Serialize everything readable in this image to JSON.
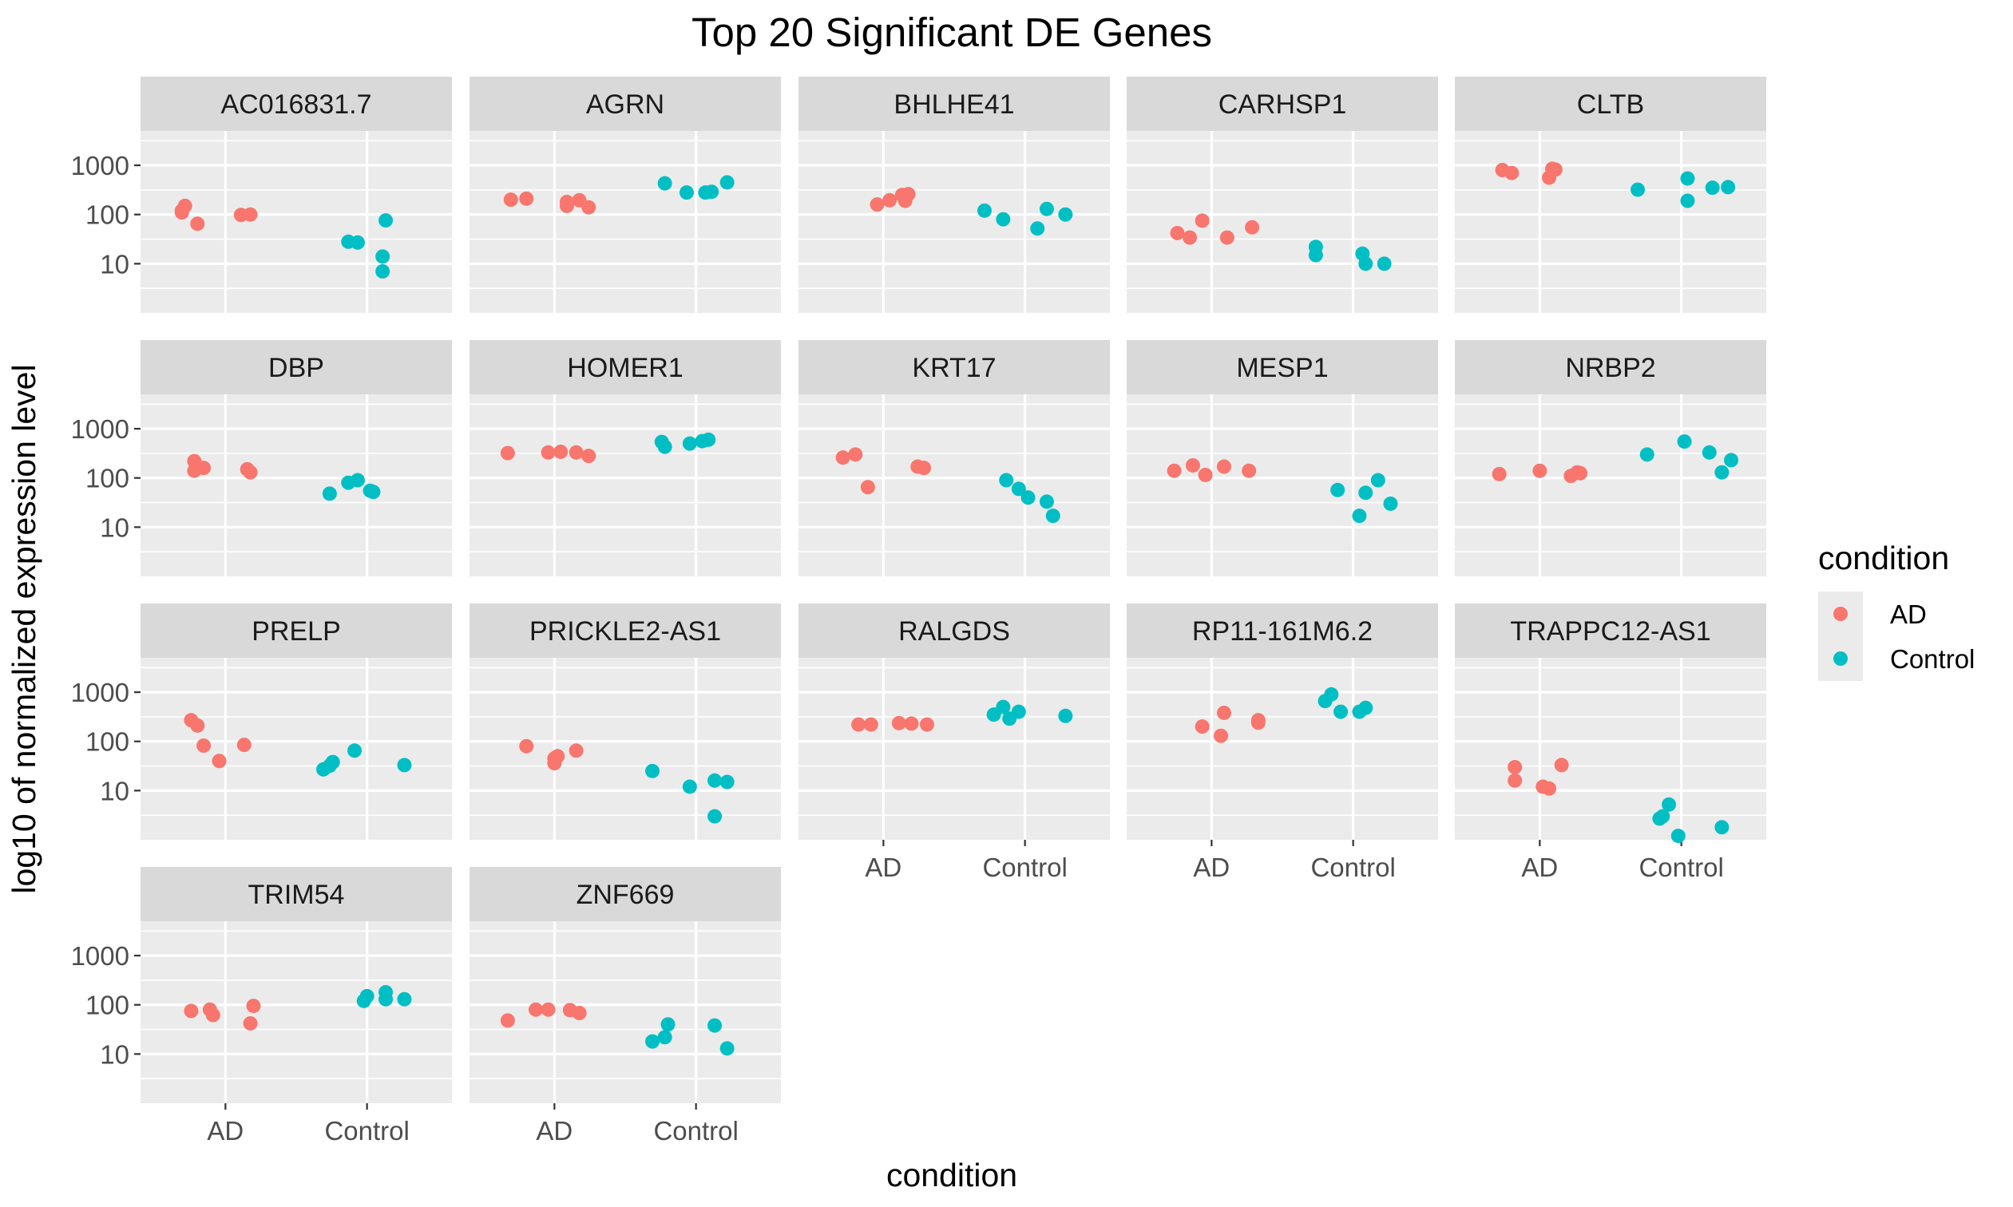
{
  "chart_data": {
    "type": "scatter",
    "title": "Top 20 Significant DE Genes",
    "xlabel": "condition",
    "ylabel": "log10 of normalized expression level",
    "categories": [
      "AD",
      "Control"
    ],
    "y_scale": "log10",
    "ylim": [
      1,
      5000
    ],
    "y_ticks": [
      10,
      100,
      1000
    ],
    "y_tick_labels": [
      "10",
      "100",
      "1000"
    ],
    "grid": true,
    "legend": {
      "title": "condition",
      "position": "right",
      "entries": [
        {
          "name": "AD",
          "color": "#F8766D"
        },
        {
          "name": "Control",
          "color": "#00BFC4"
        }
      ]
    },
    "panels": [
      {
        "gene": "AC016831.7",
        "AD": [
          [
            -0.14,
            120
          ],
          [
            -0.13,
            150
          ],
          [
            -0.09,
            65
          ],
          [
            -0.14,
            110
          ],
          [
            0.05,
            98
          ],
          [
            0.08,
            100
          ]
        ],
        "Control": [
          [
            -0.06,
            28
          ],
          [
            -0.03,
            27
          ],
          [
            0.05,
            14
          ],
          [
            0.06,
            76
          ],
          [
            0.05,
            7
          ]
        ]
      },
      {
        "gene": "AGRN",
        "AD": [
          [
            -0.14,
            200
          ],
          [
            -0.09,
            210
          ],
          [
            0.04,
            180
          ],
          [
            0.08,
            195
          ],
          [
            0.11,
            140
          ],
          [
            0.04,
            150
          ]
        ],
        "Control": [
          [
            -0.1,
            430
          ],
          [
            -0.03,
            280
          ],
          [
            0.05,
            290
          ],
          [
            0.1,
            450
          ],
          [
            0.03,
            280
          ]
        ]
      },
      {
        "gene": "BHLHE41",
        "AD": [
          [
            -0.02,
            160
          ],
          [
            0.02,
            195
          ],
          [
            0.06,
            250
          ],
          [
            0.08,
            260
          ],
          [
            0.07,
            190
          ]
        ],
        "Control": [
          [
            -0.13,
            120
          ],
          [
            -0.07,
            80
          ],
          [
            0.04,
            52
          ],
          [
            0.07,
            130
          ],
          [
            0.13,
            100
          ]
        ]
      },
      {
        "gene": "CARHSP1",
        "AD": [
          [
            -0.11,
            42
          ],
          [
            -0.07,
            34
          ],
          [
            -0.03,
            75
          ],
          [
            0.05,
            34
          ],
          [
            0.13,
            55
          ]
        ],
        "Control": [
          [
            -0.12,
            15
          ],
          [
            -0.12,
            22
          ],
          [
            0.03,
            16
          ],
          [
            0.04,
            10
          ],
          [
            0.1,
            10
          ]
        ]
      },
      {
        "gene": "CLTB",
        "AD": [
          [
            -0.12,
            800
          ],
          [
            -0.09,
            700
          ],
          [
            0.03,
            560
          ],
          [
            0.05,
            820
          ],
          [
            0.04,
            850
          ]
        ],
        "Control": [
          [
            -0.14,
            320
          ],
          [
            0.02,
            540
          ],
          [
            0.02,
            190
          ],
          [
            0.1,
            350
          ],
          [
            0.15,
            360
          ]
        ]
      },
      {
        "gene": "DBP",
        "AD": [
          [
            -0.1,
            220
          ],
          [
            -0.1,
            140
          ],
          [
            -0.07,
            160
          ],
          [
            0.07,
            150
          ],
          [
            0.08,
            130
          ]
        ],
        "Control": [
          [
            -0.12,
            48
          ],
          [
            -0.06,
            80
          ],
          [
            -0.03,
            90
          ],
          [
            0.02,
            52
          ],
          [
            0.01,
            55
          ]
        ]
      },
      {
        "gene": "HOMER1",
        "AD": [
          [
            -0.15,
            320
          ],
          [
            -0.02,
            330
          ],
          [
            0.02,
            340
          ],
          [
            0.07,
            330
          ],
          [
            0.11,
            280
          ]
        ],
        "Control": [
          [
            -0.1,
            430
          ],
          [
            -0.11,
            540
          ],
          [
            -0.02,
            500
          ],
          [
            0.02,
            560
          ],
          [
            0.04,
            600
          ]
        ]
      },
      {
        "gene": "KRT17",
        "AD": [
          [
            -0.13,
            260
          ],
          [
            -0.09,
            300
          ],
          [
            -0.05,
            65
          ],
          [
            0.11,
            170
          ],
          [
            0.13,
            160
          ]
        ],
        "Control": [
          [
            -0.06,
            90
          ],
          [
            -0.02,
            60
          ],
          [
            0.01,
            40
          ],
          [
            0.07,
            33
          ],
          [
            0.09,
            17
          ]
        ]
      },
      {
        "gene": "MESP1",
        "AD": [
          [
            -0.12,
            140
          ],
          [
            -0.06,
            180
          ],
          [
            -0.02,
            115
          ],
          [
            0.04,
            170
          ],
          [
            0.12,
            140
          ]
        ],
        "Control": [
          [
            -0.05,
            57
          ],
          [
            0.02,
            17
          ],
          [
            0.04,
            50
          ],
          [
            0.08,
            90
          ],
          [
            0.12,
            30
          ]
        ]
      },
      {
        "gene": "NRBP2",
        "AD": [
          [
            -0.13,
            120
          ],
          [
            0.0,
            140
          ],
          [
            0.1,
            110
          ],
          [
            0.13,
            125
          ],
          [
            0.12,
            130
          ]
        ],
        "Control": [
          [
            -0.11,
            300
          ],
          [
            0.01,
            550
          ],
          [
            0.09,
            330
          ],
          [
            0.13,
            130
          ],
          [
            0.16,
            230
          ]
        ]
      },
      {
        "gene": "PRELP",
        "AD": [
          [
            -0.11,
            270
          ],
          [
            -0.09,
            210
          ],
          [
            -0.07,
            82
          ],
          [
            -0.02,
            40
          ],
          [
            0.06,
            85
          ]
        ],
        "Control": [
          [
            -0.14,
            27
          ],
          [
            -0.12,
            32
          ],
          [
            -0.11,
            38
          ],
          [
            -0.04,
            65
          ],
          [
            0.12,
            33
          ]
        ]
      },
      {
        "gene": "PRICKLE2-AS1",
        "AD": [
          [
            -0.09,
            80
          ],
          [
            0.0,
            45
          ],
          [
            0.0,
            36
          ],
          [
            0.07,
            65
          ],
          [
            0.01,
            50
          ]
        ],
        "Control": [
          [
            -0.14,
            25
          ],
          [
            -0.02,
            12
          ],
          [
            0.06,
            16
          ],
          [
            0.1,
            15
          ],
          [
            0.06,
            3
          ]
        ]
      },
      {
        "gene": "RALGDS",
        "AD": [
          [
            -0.08,
            220
          ],
          [
            -0.04,
            220
          ],
          [
            0.05,
            235
          ],
          [
            0.09,
            230
          ],
          [
            0.14,
            220
          ]
        ],
        "Control": [
          [
            -0.1,
            350
          ],
          [
            -0.07,
            500
          ],
          [
            -0.05,
            290
          ],
          [
            -0.02,
            400
          ],
          [
            0.13,
            330
          ]
        ]
      },
      {
        "gene": "RP11-161M6.2",
        "AD": [
          [
            -0.03,
            200
          ],
          [
            0.03,
            130
          ],
          [
            0.04,
            380
          ],
          [
            0.15,
            270
          ],
          [
            0.15,
            240
          ]
        ],
        "Control": [
          [
            -0.09,
            660
          ],
          [
            -0.07,
            900
          ],
          [
            -0.04,
            400
          ],
          [
            0.02,
            400
          ],
          [
            0.04,
            480
          ]
        ]
      },
      {
        "gene": "TRAPPC12-AS1",
        "AD": [
          [
            -0.08,
            30
          ],
          [
            -0.08,
            16
          ],
          [
            0.01,
            12
          ],
          [
            0.03,
            11
          ],
          [
            0.07,
            33
          ]
        ],
        "Control": [
          [
            -0.04,
            5.2
          ],
          [
            -0.06,
            3
          ],
          [
            -0.07,
            2.7
          ],
          [
            -0.01,
            1.2
          ],
          [
            0.13,
            1.8
          ]
        ]
      },
      {
        "gene": "TRIM54",
        "AD": [
          [
            -0.11,
            75
          ],
          [
            -0.05,
            80
          ],
          [
            -0.04,
            62
          ],
          [
            0.09,
            95
          ],
          [
            0.08,
            42
          ]
        ],
        "Control": [
          [
            -0.01,
            120
          ],
          [
            0.06,
            180
          ],
          [
            0.06,
            130
          ],
          [
            0.12,
            130
          ],
          [
            0.0,
            150
          ]
        ]
      },
      {
        "gene": "ZNF669",
        "AD": [
          [
            -0.15,
            48
          ],
          [
            -0.06,
            80
          ],
          [
            -0.02,
            80
          ],
          [
            0.05,
            78
          ],
          [
            0.08,
            68
          ]
        ],
        "Control": [
          [
            -0.14,
            18
          ],
          [
            -0.1,
            22
          ],
          [
            -0.09,
            40
          ],
          [
            0.06,
            38
          ],
          [
            0.1,
            13
          ]
        ]
      }
    ]
  }
}
